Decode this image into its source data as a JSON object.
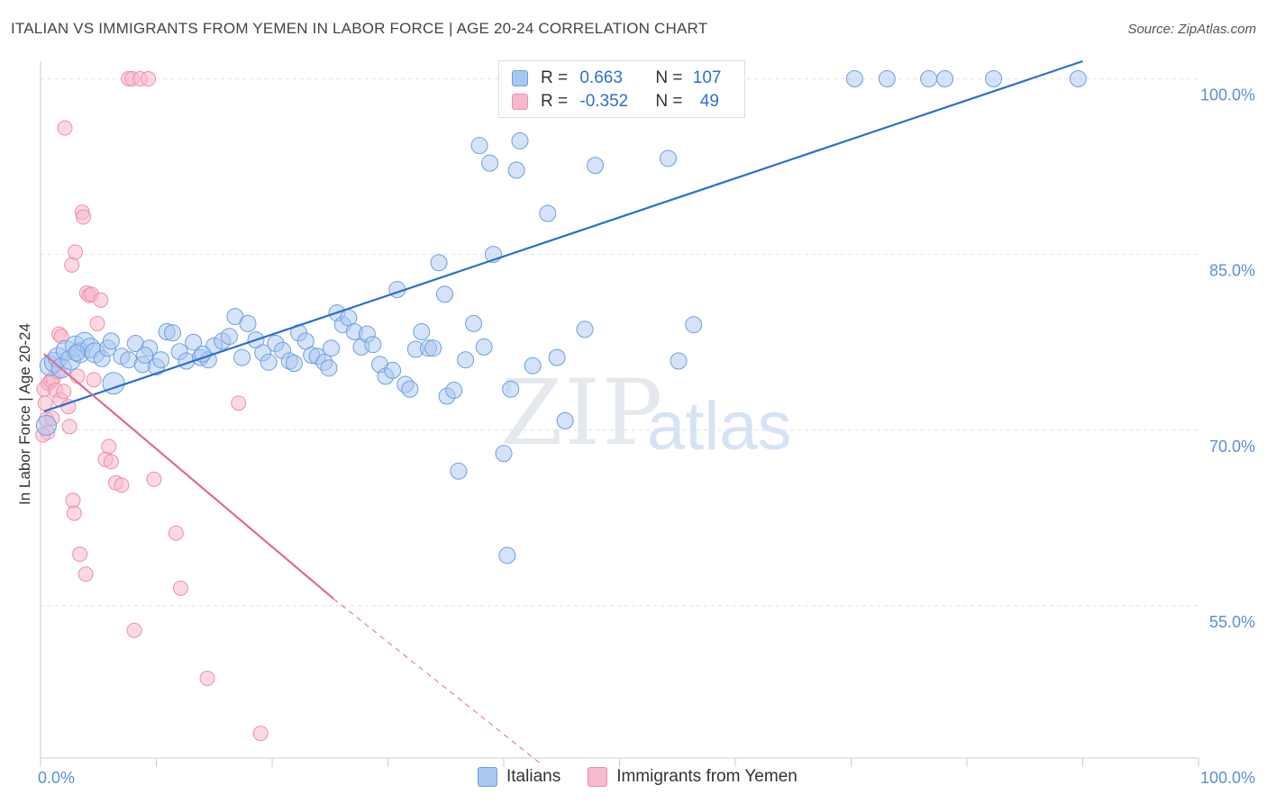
{
  "title": "ITALIAN VS IMMIGRANTS FROM YEMEN IN LABOR FORCE | AGE 20-24 CORRELATION CHART",
  "source": "Source: ZipAtlas.com",
  "watermark": {
    "zip": "ZIP",
    "atlas": "atlas"
  },
  "colors": {
    "italians_fill": "#a9c8f0",
    "italians_stroke": "#6e9fe0",
    "italians_line": "#2b6fd0",
    "yemen_fill": "#f7b9cc",
    "yemen_stroke": "#ee8eab",
    "yemen_line": "#e0689a",
    "tick": "#5b8ed6",
    "grid": "#e2e2e2"
  },
  "legend": {
    "rows": [
      {
        "r_label": "R = ",
        "r_value": "0.663",
        "n_label": "N = ",
        "n_value": "107"
      },
      {
        "r_label": "R = ",
        "r_value": "-0.352",
        "n_label": "N = ",
        "n_value": "49"
      }
    ]
  },
  "bottom_legend": [
    "Italians",
    "Immigrants from Yemen"
  ],
  "chart_data": {
    "type": "scatter",
    "title": "ITALIAN VS IMMIGRANTS FROM YEMEN IN LABOR FORCE | AGE 20-24 CORRELATION CHART",
    "xlabel": "",
    "ylabel": "In Labor Force | Age 20-24",
    "xlim": [
      0,
      100
    ],
    "ylim": [
      42,
      101.5
    ],
    "x_tick_labels": [
      "0.0%",
      "100.0%"
    ],
    "y_ticks": [
      55,
      70,
      85,
      100
    ],
    "y_tick_labels": [
      "55.0%",
      "70.0%",
      "85.0%",
      "100.0%"
    ],
    "grid": true,
    "series": [
      {
        "name": "Italians",
        "trend": {
          "x": [
            0.3,
            90
          ],
          "y": [
            71.6,
            101.5
          ],
          "dashed_extension": false
        },
        "points": [
          [
            0.5,
            70.4
          ],
          [
            0.8,
            75.5
          ],
          [
            1.2,
            75.8
          ],
          [
            1.5,
            76.2
          ],
          [
            1.8,
            75.3
          ],
          [
            2.2,
            76.8
          ],
          [
            2.6,
            76.0
          ],
          [
            3.0,
            77.2
          ],
          [
            3.4,
            76.6
          ],
          [
            3.8,
            77.5
          ],
          [
            4.3,
            77.0
          ],
          [
            4.7,
            76.6
          ],
          [
            5.3,
            76.1
          ],
          [
            5.8,
            77.0
          ],
          [
            6.3,
            74.0
          ],
          [
            7.0,
            76.3
          ],
          [
            7.6,
            76.0
          ],
          [
            8.2,
            77.4
          ],
          [
            8.8,
            75.6
          ],
          [
            9.4,
            77.0
          ],
          [
            10.0,
            75.4
          ],
          [
            10.4,
            76.0
          ],
          [
            10.9,
            78.4
          ],
          [
            11.4,
            78.3
          ],
          [
            12.0,
            76.7
          ],
          [
            12.6,
            75.9
          ],
          [
            13.2,
            77.5
          ],
          [
            13.8,
            76.2
          ],
          [
            14.5,
            76.0
          ],
          [
            15.0,
            77.2
          ],
          [
            15.7,
            77.6
          ],
          [
            16.3,
            78.0
          ],
          [
            16.8,
            79.7
          ],
          [
            17.4,
            76.2
          ],
          [
            17.9,
            79.1
          ],
          [
            18.6,
            77.7
          ],
          [
            19.2,
            76.6
          ],
          [
            19.7,
            75.8
          ],
          [
            20.3,
            77.4
          ],
          [
            20.9,
            76.8
          ],
          [
            21.5,
            75.9
          ],
          [
            21.9,
            75.7
          ],
          [
            22.3,
            78.3
          ],
          [
            22.9,
            77.6
          ],
          [
            23.4,
            76.4
          ],
          [
            23.9,
            76.3
          ],
          [
            24.5,
            75.8
          ],
          [
            25.1,
            77.0
          ],
          [
            25.6,
            80.0
          ],
          [
            26.1,
            79.0
          ],
          [
            26.6,
            79.6
          ],
          [
            27.1,
            78.4
          ],
          [
            27.7,
            77.1
          ],
          [
            28.2,
            78.2
          ],
          [
            28.7,
            77.3
          ],
          [
            29.3,
            75.6
          ],
          [
            29.8,
            74.6
          ],
          [
            30.4,
            75.1
          ],
          [
            30.8,
            82.0
          ],
          [
            31.5,
            73.9
          ],
          [
            31.9,
            73.5
          ],
          [
            32.4,
            76.9
          ],
          [
            32.9,
            78.4
          ],
          [
            33.5,
            77.0
          ],
          [
            33.9,
            77.0
          ],
          [
            34.4,
            84.3
          ],
          [
            34.9,
            81.6
          ],
          [
            35.1,
            72.9
          ],
          [
            35.7,
            73.4
          ],
          [
            36.1,
            66.5
          ],
          [
            36.7,
            76.0
          ],
          [
            37.4,
            79.1
          ],
          [
            37.9,
            94.3
          ],
          [
            38.3,
            77.1
          ],
          [
            38.8,
            92.8
          ],
          [
            39.1,
            85.0
          ],
          [
            40.0,
            68.0
          ],
          [
            40.6,
            73.5
          ],
          [
            41.1,
            92.2
          ],
          [
            41.4,
            94.7
          ],
          [
            42.5,
            75.5
          ],
          [
            43.8,
            88.5
          ],
          [
            44.6,
            76.2
          ],
          [
            45.3,
            70.8
          ],
          [
            46.2,
            100
          ],
          [
            47.0,
            78.6
          ],
          [
            47.9,
            92.6
          ],
          [
            48.5,
            100
          ],
          [
            49.7,
            100
          ],
          [
            50.4,
            100
          ],
          [
            51.6,
            100
          ],
          [
            53.1,
            100
          ],
          [
            54.2,
            93.2
          ],
          [
            55.1,
            75.9
          ],
          [
            56.4,
            79.0
          ],
          [
            40.3,
            59.3
          ],
          [
            70.3,
            100
          ],
          [
            73.1,
            100
          ],
          [
            76.7,
            100
          ],
          [
            78.1,
            100
          ],
          [
            82.3,
            100
          ],
          [
            89.6,
            100
          ],
          [
            24.9,
            75.3
          ],
          [
            14.0,
            76.5
          ],
          [
            9.0,
            76.4
          ],
          [
            3.1,
            76.6
          ],
          [
            6.1,
            77.6
          ]
        ]
      },
      {
        "name": "Immigrants from Yemen",
        "trend": {
          "x": [
            0.3,
            25.3
          ],
          "y": [
            76.5,
            55.6
          ],
          "dashed_to": [
            43.2,
            41.5
          ]
        },
        "points": [
          [
            0.3,
            73.5
          ],
          [
            0.4,
            72.3
          ],
          [
            0.5,
            70.9
          ],
          [
            0.6,
            69.8
          ],
          [
            0.7,
            74.0
          ],
          [
            0.9,
            74.2
          ],
          [
            1.1,
            74.4
          ],
          [
            1.3,
            73.4
          ],
          [
            1.5,
            75.0
          ],
          [
            1.6,
            78.2
          ],
          [
            1.7,
            72.6
          ],
          [
            1.8,
            78.0
          ],
          [
            2.0,
            73.3
          ],
          [
            2.1,
            95.8
          ],
          [
            2.4,
            72.0
          ],
          [
            2.5,
            70.3
          ],
          [
            2.7,
            84.1
          ],
          [
            2.8,
            64.0
          ],
          [
            2.9,
            62.9
          ],
          [
            3.0,
            85.2
          ],
          [
            3.2,
            74.6
          ],
          [
            3.4,
            59.4
          ],
          [
            3.6,
            88.6
          ],
          [
            3.7,
            88.2
          ],
          [
            3.9,
            57.7
          ],
          [
            4.0,
            81.7
          ],
          [
            4.2,
            81.5
          ],
          [
            4.4,
            81.6
          ],
          [
            4.6,
            74.3
          ],
          [
            4.9,
            79.1
          ],
          [
            5.2,
            81.1
          ],
          [
            5.6,
            67.5
          ],
          [
            5.9,
            68.6
          ],
          [
            6.1,
            67.3
          ],
          [
            6.5,
            65.5
          ],
          [
            7.0,
            65.3
          ],
          [
            7.6,
            100
          ],
          [
            7.9,
            100
          ],
          [
            8.1,
            52.9
          ],
          [
            8.6,
            100
          ],
          [
            9.3,
            100
          ],
          [
            9.8,
            65.8
          ],
          [
            11.7,
            61.2
          ],
          [
            12.1,
            56.5
          ],
          [
            14.4,
            48.8
          ],
          [
            17.1,
            72.3
          ],
          [
            19.0,
            44.1
          ],
          [
            0.2,
            69.6
          ],
          [
            1.0,
            71.0
          ]
        ]
      }
    ]
  }
}
